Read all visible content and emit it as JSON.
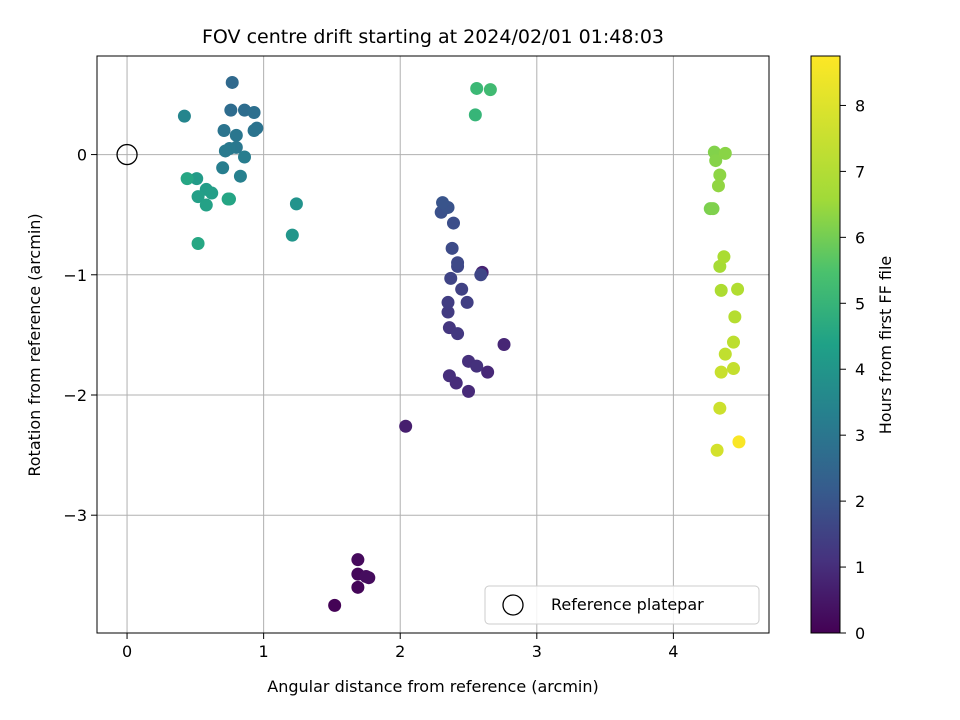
{
  "chart_data": {
    "type": "scatter",
    "title": "FOV centre drift starting at 2024/02/01 01:48:03",
    "xlabel": "Angular distance from reference (arcmin)",
    "ylabel": "Rotation from reference (arcmin)",
    "xlim": [
      -0.22,
      4.7
    ],
    "ylim": [
      -3.98,
      0.82
    ],
    "xticks": [
      0,
      1,
      2,
      3,
      4
    ],
    "yticks": [
      0,
      -1,
      -2,
      -3
    ],
    "xtick_labels": [
      "0",
      "1",
      "2",
      "3",
      "4"
    ],
    "ytick_labels": [
      "0",
      "−1",
      "−2",
      "−3"
    ],
    "grid": true,
    "colormap": "viridis",
    "colorbar": {
      "label": "Hours from first FF file",
      "range": [
        0,
        8.75
      ],
      "ticks": [
        0,
        1,
        2,
        3,
        4,
        5,
        6,
        7,
        8
      ],
      "tick_labels": [
        "0",
        "1",
        "2",
        "3",
        "4",
        "5",
        "6",
        "7",
        "8"
      ]
    },
    "reference": {
      "x": 0,
      "y": 0,
      "label": "Reference platepar"
    },
    "legend_position": "lower-right",
    "points": [
      {
        "x": 1.52,
        "y": -3.75,
        "hours": 0.05
      },
      {
        "x": 1.69,
        "y": -3.6,
        "hours": 0.12
      },
      {
        "x": 1.69,
        "y": -3.49,
        "hours": 0.18
      },
      {
        "x": 1.69,
        "y": -3.37,
        "hours": 0.22
      },
      {
        "x": 1.77,
        "y": -3.52,
        "hours": 0.25
      },
      {
        "x": 1.75,
        "y": -3.51,
        "hours": 0.3
      },
      {
        "x": 2.04,
        "y": -2.26,
        "hours": 0.75
      },
      {
        "x": 2.6,
        "y": -0.98,
        "hours": 0.85
      },
      {
        "x": 2.76,
        "y": -1.58,
        "hours": 0.95
      },
      {
        "x": 2.64,
        "y": -1.81,
        "hours": 1.0
      },
      {
        "x": 2.5,
        "y": -1.97,
        "hours": 1.05
      },
      {
        "x": 2.41,
        "y": -1.9,
        "hours": 1.1
      },
      {
        "x": 2.36,
        "y": -1.84,
        "hours": 1.15
      },
      {
        "x": 2.5,
        "y": -1.72,
        "hours": 1.2
      },
      {
        "x": 2.56,
        "y": -1.76,
        "hours": 1.25
      },
      {
        "x": 2.36,
        "y": -1.44,
        "hours": 1.4
      },
      {
        "x": 2.42,
        "y": -1.49,
        "hours": 1.45
      },
      {
        "x": 2.35,
        "y": -1.31,
        "hours": 1.55
      },
      {
        "x": 2.35,
        "y": -1.23,
        "hours": 1.6
      },
      {
        "x": 2.49,
        "y": -1.23,
        "hours": 1.65
      },
      {
        "x": 2.45,
        "y": -1.12,
        "hours": 1.7
      },
      {
        "x": 2.37,
        "y": -1.03,
        "hours": 1.8
      },
      {
        "x": 2.59,
        "y": -1.0,
        "hours": 1.85
      },
      {
        "x": 2.42,
        "y": -0.93,
        "hours": 1.9
      },
      {
        "x": 2.42,
        "y": -0.9,
        "hours": 1.95
      },
      {
        "x": 2.38,
        "y": -0.78,
        "hours": 2.0
      },
      {
        "x": 2.39,
        "y": -0.57,
        "hours": 2.1
      },
      {
        "x": 2.3,
        "y": -0.48,
        "hours": 2.2
      },
      {
        "x": 2.35,
        "y": -0.44,
        "hours": 2.25
      },
      {
        "x": 2.31,
        "y": -0.4,
        "hours": 2.3
      },
      {
        "x": 0.77,
        "y": 0.6,
        "hours": 3.0
      },
      {
        "x": 0.76,
        "y": 0.37,
        "hours": 3.1
      },
      {
        "x": 0.86,
        "y": 0.37,
        "hours": 3.15
      },
      {
        "x": 0.93,
        "y": 0.35,
        "hours": 3.2
      },
      {
        "x": 0.95,
        "y": 0.22,
        "hours": 3.3
      },
      {
        "x": 0.93,
        "y": 0.2,
        "hours": 3.35
      },
      {
        "x": 0.71,
        "y": 0.2,
        "hours": 3.4
      },
      {
        "x": 0.8,
        "y": 0.16,
        "hours": 3.45
      },
      {
        "x": 0.8,
        "y": 0.06,
        "hours": 3.5
      },
      {
        "x": 0.75,
        "y": 0.05,
        "hours": 3.55
      },
      {
        "x": 0.72,
        "y": 0.03,
        "hours": 3.6
      },
      {
        "x": 0.86,
        "y": -0.02,
        "hours": 3.7
      },
      {
        "x": 0.7,
        "y": -0.11,
        "hours": 3.75
      },
      {
        "x": 0.83,
        "y": -0.18,
        "hours": 3.8
      },
      {
        "x": 0.42,
        "y": 0.32,
        "hours": 4.0
      },
      {
        "x": 1.24,
        "y": -0.41,
        "hours": 4.5
      },
      {
        "x": 1.21,
        "y": -0.67,
        "hours": 4.6
      },
      {
        "x": 0.51,
        "y": -0.2,
        "hours": 4.8
      },
      {
        "x": 0.58,
        "y": -0.29,
        "hours": 4.85
      },
      {
        "x": 0.62,
        "y": -0.32,
        "hours": 4.9
      },
      {
        "x": 0.52,
        "y": -0.35,
        "hours": 4.95
      },
      {
        "x": 0.58,
        "y": -0.42,
        "hours": 5.0
      },
      {
        "x": 0.75,
        "y": -0.37,
        "hours": 5.1
      },
      {
        "x": 0.74,
        "y": -0.37,
        "hours": 5.15
      },
      {
        "x": 0.44,
        "y": -0.2,
        "hours": 5.2
      },
      {
        "x": 0.52,
        "y": -0.74,
        "hours": 5.25
      },
      {
        "x": 2.55,
        "y": 0.33,
        "hours": 5.8
      },
      {
        "x": 2.56,
        "y": 0.55,
        "hours": 5.9
      },
      {
        "x": 2.66,
        "y": 0.54,
        "hours": 6.0
      },
      {
        "x": 4.27,
        "y": -0.45,
        "hours": 7.0
      },
      {
        "x": 4.29,
        "y": -0.45,
        "hours": 7.05
      },
      {
        "x": 4.3,
        "y": 0.02,
        "hours": 7.1
      },
      {
        "x": 4.31,
        "y": -0.05,
        "hours": 7.15
      },
      {
        "x": 4.38,
        "y": 0.01,
        "hours": 7.2
      },
      {
        "x": 4.34,
        "y": -0.17,
        "hours": 7.25
      },
      {
        "x": 4.33,
        "y": -0.26,
        "hours": 7.3
      },
      {
        "x": 4.34,
        "y": -0.93,
        "hours": 7.6
      },
      {
        "x": 4.37,
        "y": -0.85,
        "hours": 7.65
      },
      {
        "x": 4.35,
        "y": -1.13,
        "hours": 7.7
      },
      {
        "x": 4.47,
        "y": -1.12,
        "hours": 7.75
      },
      {
        "x": 4.45,
        "y": -1.35,
        "hours": 7.8
      },
      {
        "x": 4.44,
        "y": -1.56,
        "hours": 7.9
      },
      {
        "x": 4.38,
        "y": -1.66,
        "hours": 7.95
      },
      {
        "x": 4.44,
        "y": -1.78,
        "hours": 8.0
      },
      {
        "x": 4.35,
        "y": -1.81,
        "hours": 8.05
      },
      {
        "x": 4.34,
        "y": -2.11,
        "hours": 8.1
      },
      {
        "x": 4.32,
        "y": -2.46,
        "hours": 8.2
      },
      {
        "x": 4.48,
        "y": -2.39,
        "hours": 8.7
      }
    ]
  },
  "colors": {
    "reference_marker": "#000000",
    "grid": "#b0b0b0",
    "legend_border": "#cccccc"
  }
}
